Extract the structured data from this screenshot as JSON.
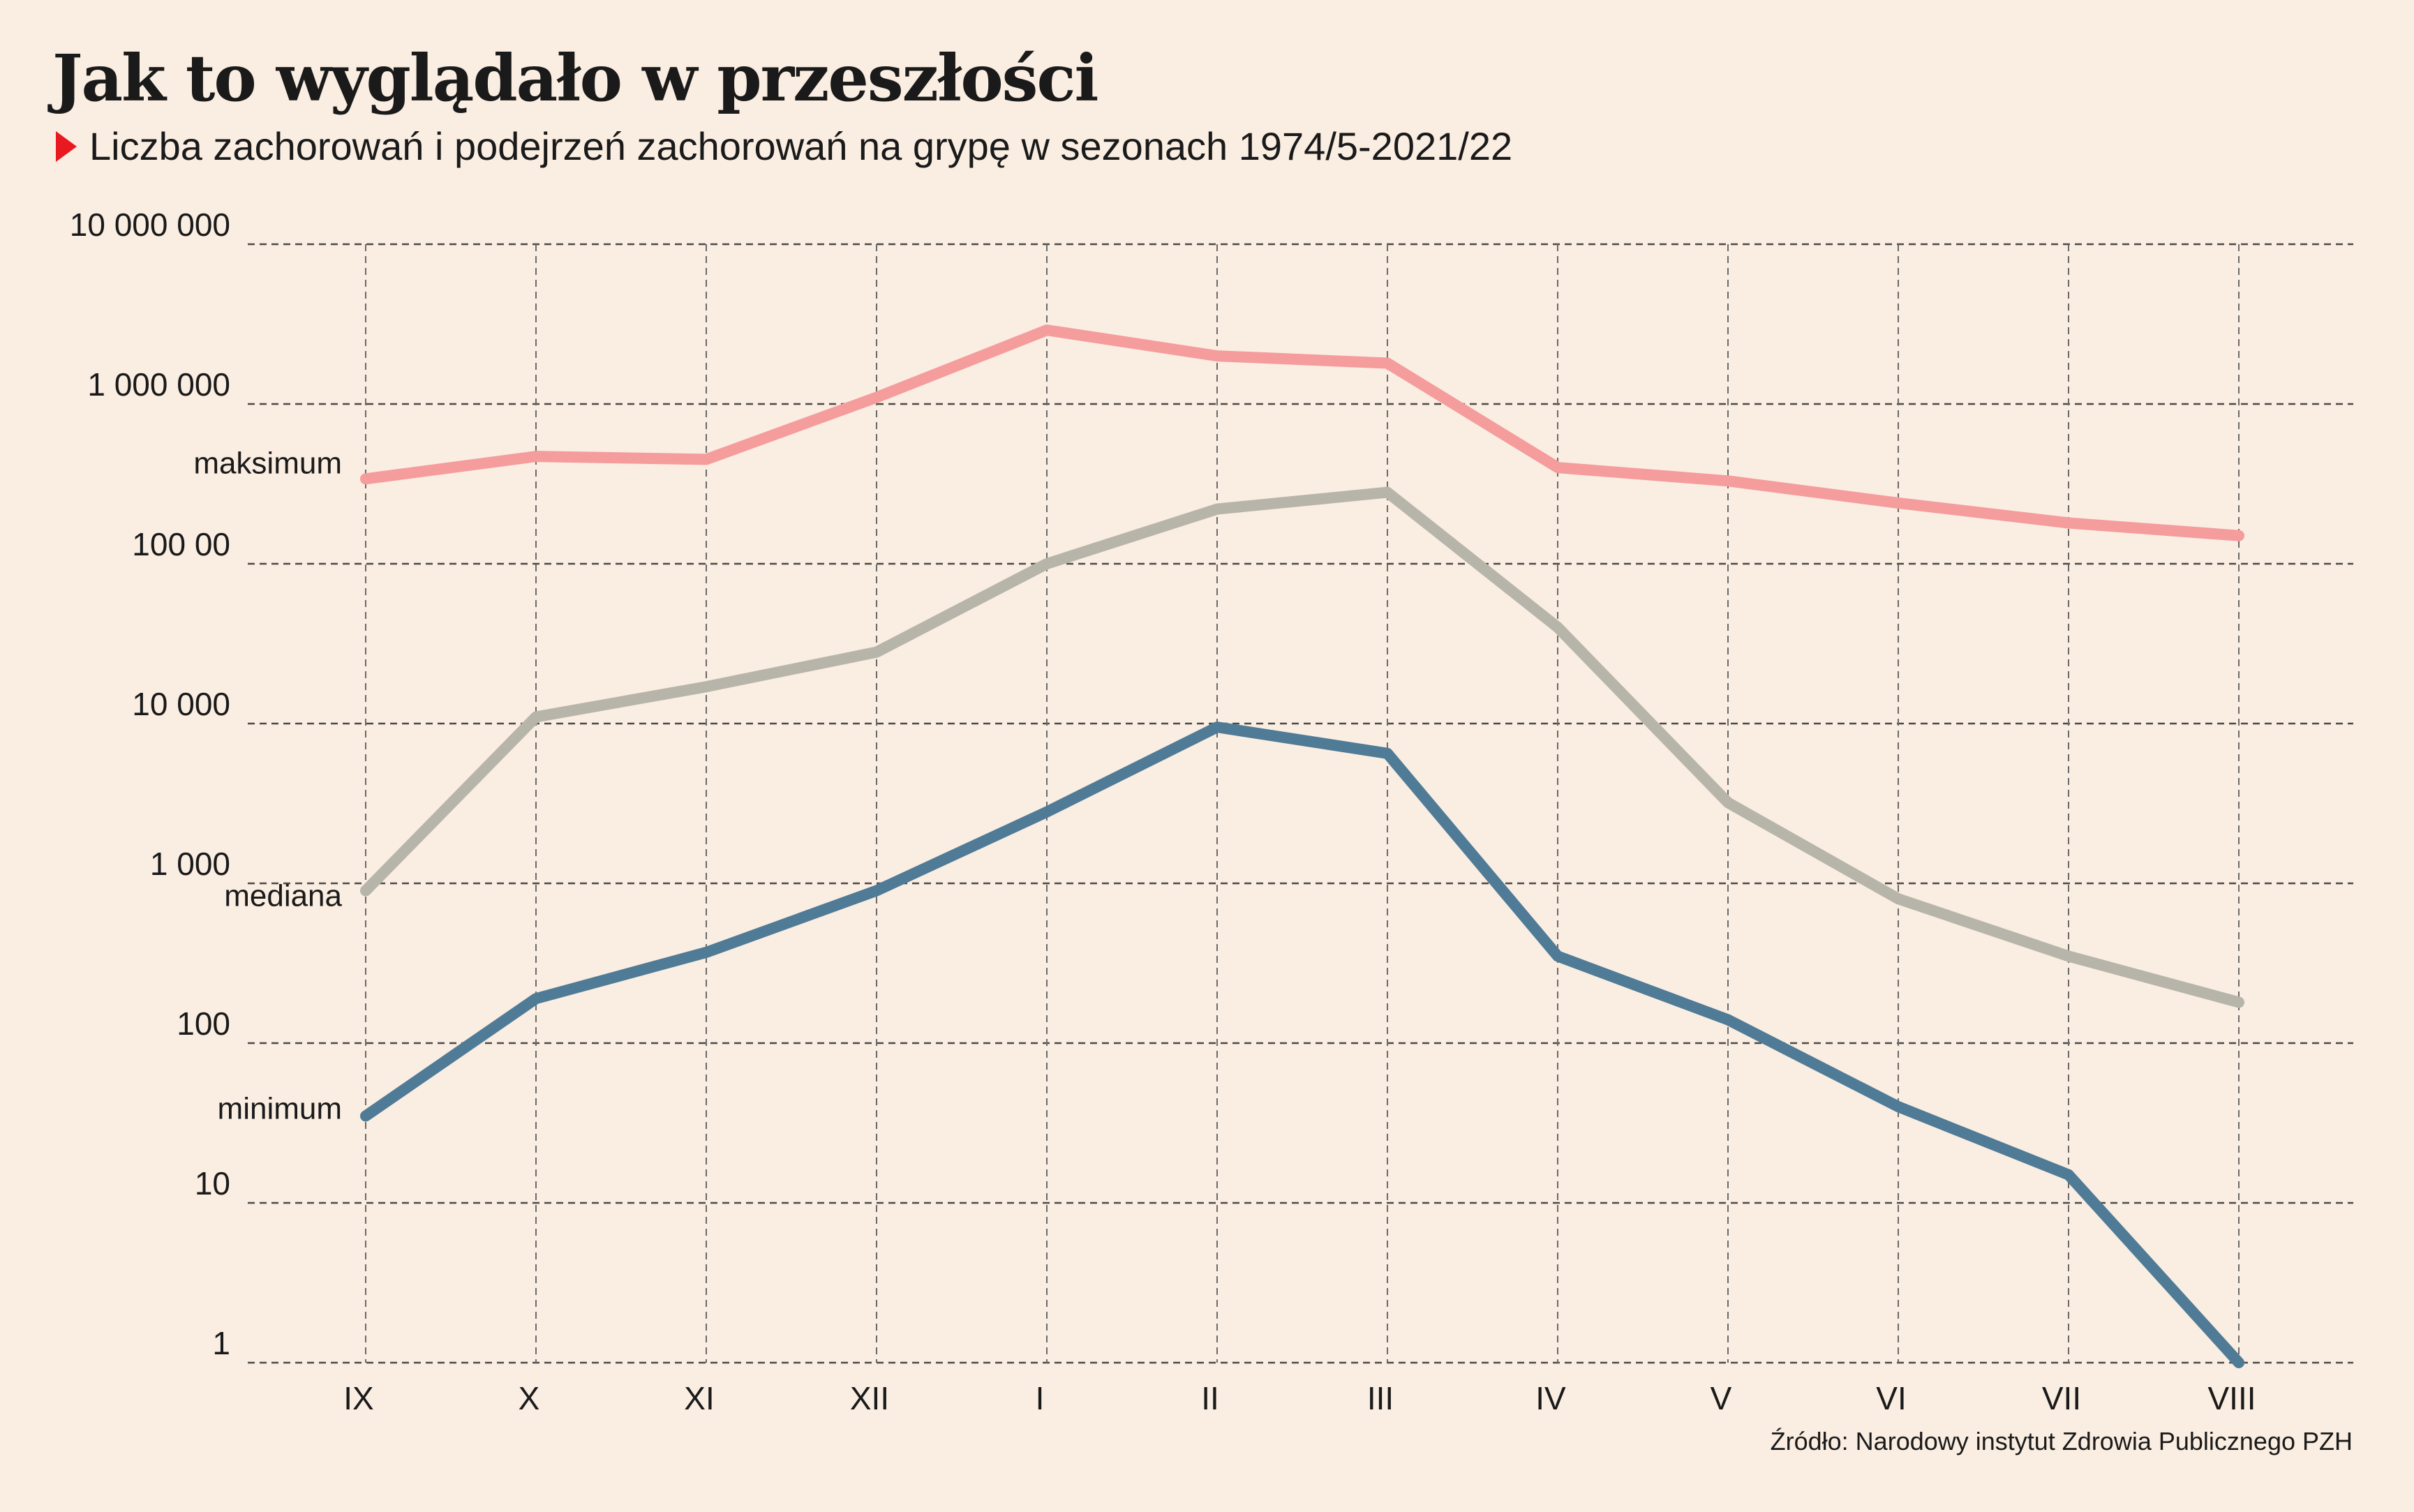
{
  "title": "Jak to wyglądało w przeszłości",
  "subtitle": "Liczba zachorowań i podejrzeń zachorowań na grypę w sezonach 1974/5-2021/22",
  "source": "Źródło: Narodowy instytut Zdrowia Publicznego PZH",
  "colors": {
    "background": "#faede1",
    "maksimum": "#f59c9c",
    "mediana": "#b7b5aa",
    "minimum": "#4f7b97",
    "marker": "#e8191f"
  },
  "chart_data": {
    "type": "line",
    "y_scale": "log",
    "ylim": [
      1,
      10000000
    ],
    "grid": true,
    "y_tick_values": [
      1,
      10,
      100,
      1000,
      10000,
      100000,
      1000000,
      10000000
    ],
    "y_tick_labels": [
      "1",
      "10",
      "100",
      "1 000",
      "10 000",
      "100 00",
      "1 000 000",
      "10 000 000"
    ],
    "categories": [
      "IX",
      "X",
      "XI",
      "XII",
      "I",
      "II",
      "III",
      "IV",
      "V",
      "VI",
      "VII",
      "VIII"
    ],
    "series": [
      {
        "name": "maksimum",
        "values": [
          340000,
          470000,
          450000,
          1100000,
          2900000,
          2000000,
          1800000,
          400000,
          330000,
          240000,
          180000,
          150000
        ]
      },
      {
        "name": "mediana",
        "values": [
          900,
          11000,
          17000,
          28000,
          100000,
          220000,
          280000,
          40000,
          3200,
          800,
          350,
          180
        ]
      },
      {
        "name": "minimum",
        "values": [
          35,
          190,
          370,
          900,
          2800,
          9500,
          6500,
          350,
          140,
          40,
          15,
          1
        ]
      }
    ]
  }
}
